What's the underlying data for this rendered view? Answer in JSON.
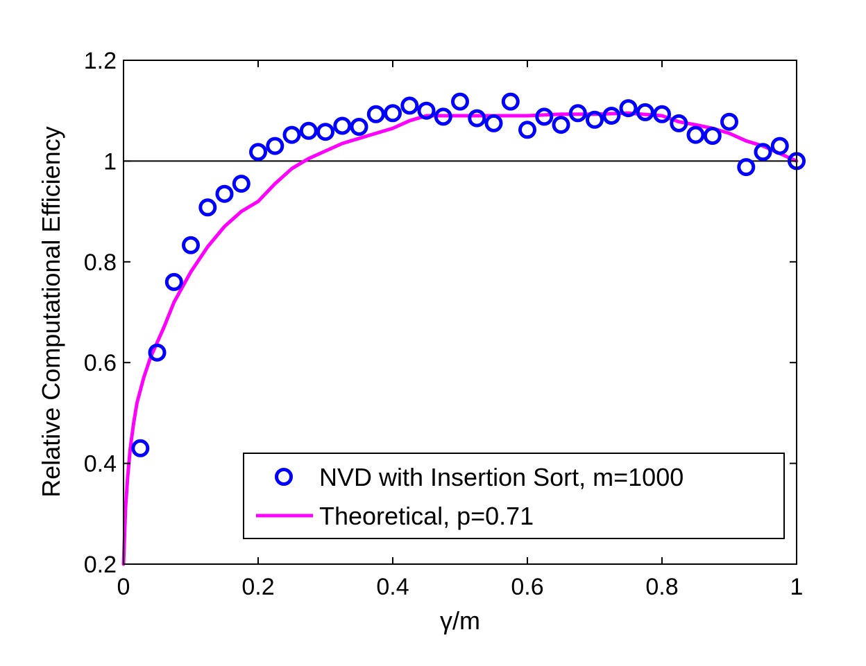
{
  "chart_data": {
    "type": "scatter",
    "xlabel": "γ/m",
    "ylabel": "Relative Computational Efficiency",
    "xlim": [
      0,
      1
    ],
    "ylim": [
      0.2,
      1.2
    ],
    "xticks": [
      "0",
      "0.2",
      "0.4",
      "0.6",
      "0.8",
      "1"
    ],
    "xtick_values": [
      0,
      0.2,
      0.4,
      0.6,
      0.8,
      1.0
    ],
    "yticks": [
      "0.2",
      "0.4",
      "0.6",
      "0.8",
      "1",
      "1.2"
    ],
    "ytick_values": [
      0.2,
      0.4,
      0.6,
      0.8,
      1.0,
      1.2
    ],
    "grid": false,
    "reference_line": {
      "y": 1.0,
      "color": "#000000"
    },
    "legend_position": "bottom-right",
    "series": [
      {
        "name": "NVD with Insertion Sort, m=1000",
        "kind": "scatter",
        "marker": "circle",
        "color": "#0000ff",
        "x": [
          0.025,
          0.05,
          0.075,
          0.1,
          0.125,
          0.15,
          0.175,
          0.2,
          0.225,
          0.25,
          0.275,
          0.3,
          0.325,
          0.35,
          0.375,
          0.4,
          0.425,
          0.45,
          0.475,
          0.5,
          0.525,
          0.55,
          0.575,
          0.6,
          0.625,
          0.65,
          0.675,
          0.7,
          0.725,
          0.75,
          0.775,
          0.8,
          0.825,
          0.85,
          0.875,
          0.9,
          0.925,
          0.95,
          0.975,
          1.0
        ],
        "y": [
          0.43,
          0.62,
          0.76,
          0.833,
          0.908,
          0.935,
          0.955,
          1.018,
          1.03,
          1.052,
          1.06,
          1.058,
          1.07,
          1.068,
          1.093,
          1.095,
          1.11,
          1.1,
          1.088,
          1.118,
          1.085,
          1.075,
          1.118,
          1.062,
          1.088,
          1.072,
          1.095,
          1.082,
          1.09,
          1.105,
          1.097,
          1.093,
          1.075,
          1.052,
          1.05,
          1.078,
          0.988,
          1.018,
          1.03,
          1.0
        ]
      },
      {
        "name": "Theoretical, p=0.71",
        "kind": "line",
        "color": "#ff00ff",
        "x": [
          0.0,
          0.003,
          0.006,
          0.01,
          0.015,
          0.02,
          0.03,
          0.04,
          0.05,
          0.06,
          0.075,
          0.1,
          0.125,
          0.15,
          0.175,
          0.2,
          0.225,
          0.25,
          0.275,
          0.3,
          0.325,
          0.35,
          0.375,
          0.4,
          0.425,
          0.45,
          0.475,
          0.5,
          0.55,
          0.6,
          0.65,
          0.7,
          0.75,
          0.8,
          0.825,
          0.85,
          0.875,
          0.9,
          0.925,
          0.95,
          0.975,
          1.0
        ],
        "y": [
          0.2,
          0.31,
          0.37,
          0.43,
          0.48,
          0.52,
          0.57,
          0.61,
          0.64,
          0.67,
          0.72,
          0.78,
          0.83,
          0.87,
          0.9,
          0.92,
          0.955,
          0.985,
          1.005,
          1.02,
          1.035,
          1.045,
          1.055,
          1.065,
          1.08,
          1.09,
          1.09,
          1.09,
          1.09,
          1.09,
          1.093,
          1.093,
          1.095,
          1.09,
          1.078,
          1.072,
          1.065,
          1.055,
          1.04,
          1.03,
          1.015,
          1.0
        ]
      }
    ]
  }
}
